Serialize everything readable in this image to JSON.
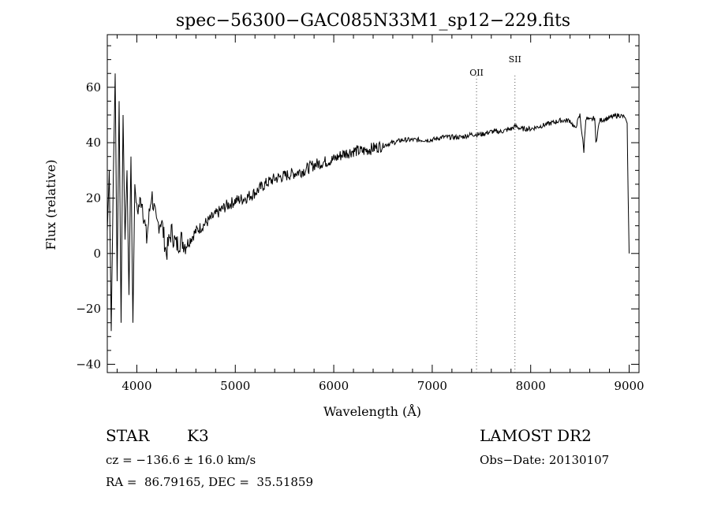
{
  "chart_data": {
    "type": "line",
    "title": "spec−56300−GAC085N33M1_sp12−229.fits",
    "xlabel": "Wavelength (Å)",
    "ylabel": "Flux (relative)",
    "xlim": [
      3700,
      9100
    ],
    "ylim": [
      -43,
      79
    ],
    "x_ticks": [
      "4000",
      "5000",
      "6000",
      "7000",
      "8000",
      "9000"
    ],
    "y_ticks": [
      "−40",
      "−20",
      "0",
      "20",
      "40",
      "60"
    ],
    "grid": false,
    "legend": "none",
    "line_markers": [
      {
        "label": "OII",
        "wavelength": 7450
      },
      {
        "label": "SII",
        "wavelength": 7840
      }
    ],
    "series": [
      {
        "x": [
          3700,
          3720,
          3740,
          3760,
          3780,
          3800,
          3820,
          3840,
          3860,
          3880,
          3900,
          3920,
          3940,
          3960,
          3980,
          4000,
          4050,
          4100,
          4150,
          4200,
          4250,
          4300,
          4350,
          4400,
          4450,
          4500,
          4600,
          4700,
          4800,
          4900,
          5000,
          5100,
          5200,
          5300,
          5400,
          5500,
          5600,
          5700,
          5800,
          5900,
          6000,
          6100,
          6200,
          6300,
          6400,
          6500,
          6600,
          6700,
          6800,
          6900,
          7000,
          7100,
          7200,
          7300,
          7400,
          7500,
          7600,
          7700,
          7800,
          7850,
          7900,
          8000,
          8100,
          8200,
          8300,
          8400,
          8450,
          8500,
          8540,
          8560,
          8600,
          8650,
          8662,
          8700,
          8800,
          8900,
          8960,
          8980,
          8990,
          9000
        ],
        "y": [
          8,
          30,
          -28,
          25,
          65,
          -10,
          55,
          -25,
          50,
          5,
          30,
          -15,
          35,
          -25,
          25,
          15,
          20,
          5,
          22,
          10,
          12,
          0,
          8,
          3,
          5,
          3,
          8,
          11,
          14,
          17,
          19,
          20,
          22,
          25,
          27,
          28,
          29,
          30,
          32,
          33,
          34,
          36,
          37,
          37,
          38,
          39,
          40,
          41,
          41,
          41,
          41,
          42,
          42,
          42,
          43,
          43,
          44,
          44,
          45,
          46,
          45,
          45,
          46,
          47,
          48,
          48,
          45,
          50,
          37,
          49,
          48,
          49,
          40,
          48,
          49,
          50,
          49,
          47,
          20,
          0
        ]
      }
    ]
  },
  "info": {
    "object_class": "STAR",
    "subclass": "K3",
    "survey": "LAMOST DR2",
    "cz": "cz = −136.6 ± 16.0 km/s",
    "obs_date": "Obs−Date: 20130107",
    "radec": "RA =  86.79165, DEC =  35.51859"
  }
}
